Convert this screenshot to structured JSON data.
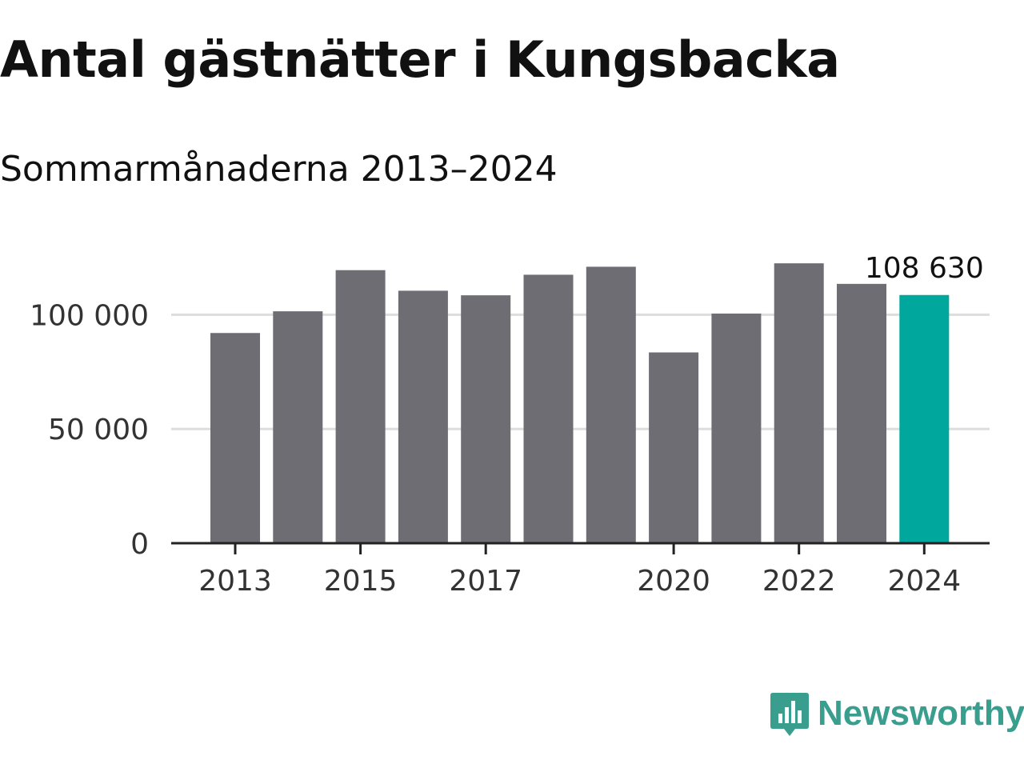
{
  "header": {
    "title": "Antal gästnätter i Kungsbacka",
    "subtitle": "Sommarmånaderna 2013–2024"
  },
  "brand": {
    "name": "Newsworthy",
    "color": "#3a9e8f",
    "icon": "bar-chart-speech-bubble-icon"
  },
  "colors": {
    "bar": "#6e6d74",
    "highlight": "#00a79d",
    "grid": "#dddddd",
    "axis": "#222222"
  },
  "chart_data": {
    "type": "bar",
    "title": "Antal gästnätter i Kungsbacka",
    "subtitle": "Sommarmånaderna 2013–2024",
    "xlabel": "",
    "ylabel": "",
    "categories": [
      "2013",
      "2014",
      "2015",
      "2016",
      "2017",
      "2018",
      "2019",
      "2020",
      "2021",
      "2022",
      "2023",
      "2024"
    ],
    "values": [
      92000,
      101500,
      119500,
      110500,
      108500,
      117500,
      121000,
      83500,
      100500,
      122500,
      113500,
      108630
    ],
    "highlight_index": 11,
    "ylim": [
      0,
      125000
    ],
    "yticks": [
      0,
      50000,
      100000
    ],
    "ytick_labels": [
      "0",
      "50 000",
      "100 000"
    ],
    "xtick_categories": [
      "2013",
      "2015",
      "2017",
      "2020",
      "2022",
      "2024"
    ],
    "annotation": {
      "category": "2024",
      "label": "108 630"
    },
    "grid": true,
    "legend": "none"
  }
}
